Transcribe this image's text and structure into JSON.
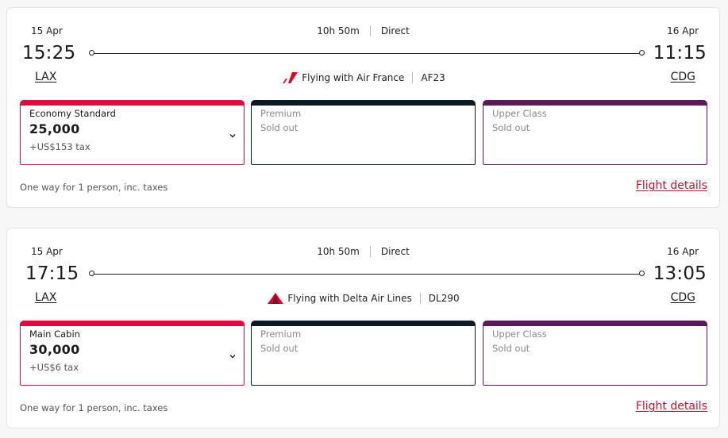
{
  "colors": {
    "economy": "#e10a3e",
    "premium": "#0b1a26",
    "upper": "#5a1b5e",
    "link": "#c8102e",
    "air_france_red": "#e3051b",
    "delta_red": "#c8102e"
  },
  "flights": [
    {
      "dep_date": "15 Apr",
      "dep_time": "15:25",
      "dep_code": "LAX",
      "arr_date": "16 Apr",
      "arr_time": "11:15",
      "arr_code": "CDG",
      "duration": "10h 50m",
      "stops": "Direct",
      "carrier_icon": "air-france-logo",
      "carrier": "Flying with Air France",
      "flight_no": "AF23",
      "fares": [
        {
          "name": "Economy Standard",
          "miles": "25,000",
          "tax": "+US$153 tax"
        },
        {
          "name": "Premium",
          "status": "Sold out"
        },
        {
          "name": "Upper Class",
          "status": "Sold out"
        }
      ],
      "footnote": "One way for 1 person, inc. taxes",
      "details_label": "Flight details"
    },
    {
      "dep_date": "15 Apr",
      "dep_time": "17:15",
      "dep_code": "LAX",
      "arr_date": "16 Apr",
      "arr_time": "13:05",
      "arr_code": "CDG",
      "duration": "10h 50m",
      "stops": "Direct",
      "carrier_icon": "delta-logo",
      "carrier": "Flying with Delta Air Lines",
      "flight_no": "DL290",
      "fares": [
        {
          "name": "Main Cabin",
          "miles": "30,000",
          "tax": "+US$6 tax"
        },
        {
          "name": "Premium",
          "status": "Sold out"
        },
        {
          "name": "Upper Class",
          "status": "Sold out"
        }
      ],
      "footnote": "One way for 1 person, inc. taxes",
      "details_label": "Flight details"
    }
  ]
}
